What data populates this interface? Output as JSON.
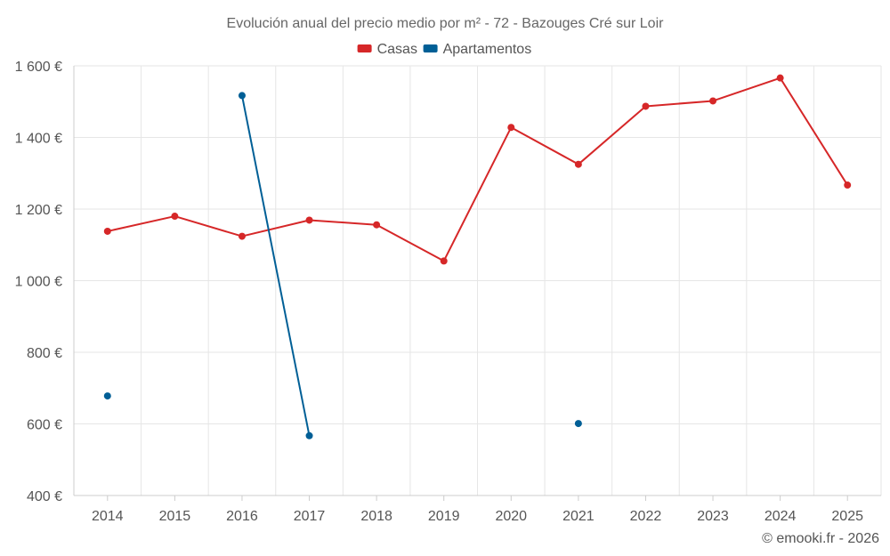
{
  "chart_data": {
    "type": "line",
    "title": "Evolución anual del precio medio por m² - 72 - Bazouges Cré sur Loir",
    "categories": [
      "2014",
      "2015",
      "2016",
      "2017",
      "2018",
      "2019",
      "2020",
      "2021",
      "2022",
      "2023",
      "2024",
      "2025"
    ],
    "y_ticks": [
      "400 €",
      "600 €",
      "800 €",
      "1 000 €",
      "1 200 €",
      "1 400 €",
      "1 600 €"
    ],
    "ylim": [
      400,
      1600
    ],
    "grid": true,
    "legend_position": "top-center",
    "series": [
      {
        "name": "Casas",
        "color": "#d62728",
        "values": [
          1138,
          1180,
          1124,
          1169,
          1156,
          1055,
          1428,
          1325,
          1487,
          1502,
          1566,
          1267
        ]
      },
      {
        "name": "Apartamentos",
        "color": "#005f96",
        "values": [
          678,
          null,
          1517,
          567,
          null,
          null,
          null,
          601,
          null,
          null,
          null,
          null
        ]
      }
    ]
  },
  "credit": "© emooki.fr - 2026"
}
